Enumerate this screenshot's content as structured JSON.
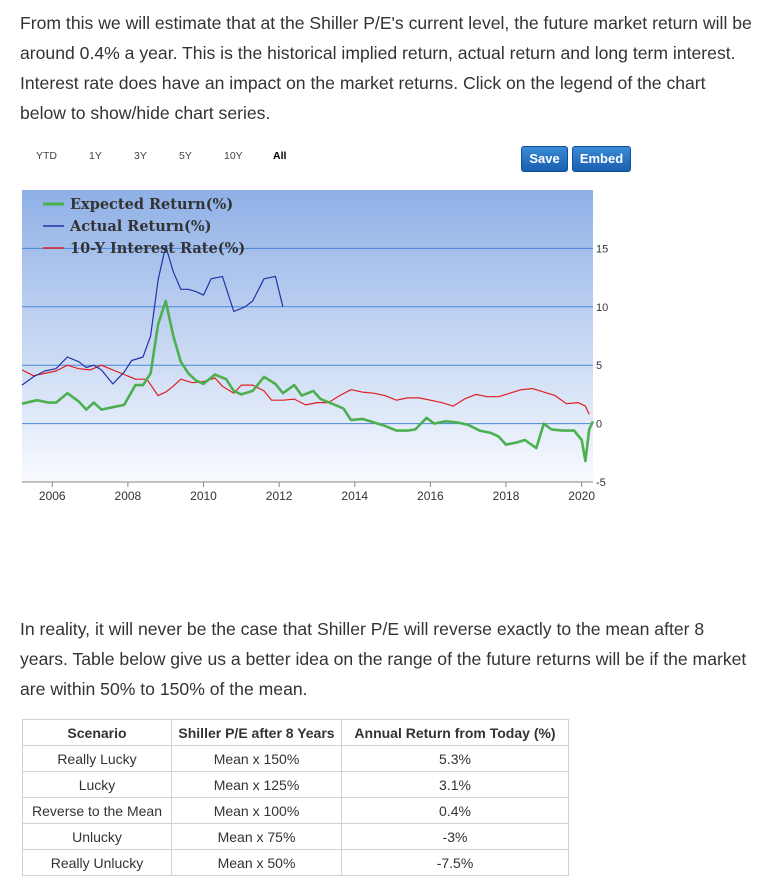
{
  "intro_text": "From this we will estimate that at the Shiller P/E's current level, the future market return will be around 0.4% a year. This is the historical implied return, actual return and long term interest. Interest rate does have an impact on the market returns. Click on the legend of the chart below to show/hide chart series.",
  "range_buttons": [
    "YTD",
    "1Y",
    "3Y",
    "5Y",
    "10Y",
    "All"
  ],
  "active_range": "All",
  "save_label": "Save",
  "embed_label": "Embed",
  "chart_data": {
    "type": "line",
    "x_ticks": [
      2006,
      2008,
      2010,
      2012,
      2014,
      2016,
      2018,
      2020
    ],
    "xlim": [
      2005.2,
      2020.3
    ],
    "y_ticks": [
      -5,
      0,
      5,
      10,
      15
    ],
    "ylim": [
      -5,
      20
    ],
    "grid": true,
    "legend_position": "top-left",
    "series": [
      {
        "name": "Expected Return(%)",
        "color": "#4cb050",
        "points": [
          [
            2005.2,
            1.7
          ],
          [
            2005.6,
            2.0
          ],
          [
            2005.9,
            1.8
          ],
          [
            2006.1,
            1.8
          ],
          [
            2006.4,
            2.6
          ],
          [
            2006.7,
            1.9
          ],
          [
            2006.9,
            1.2
          ],
          [
            2007.1,
            1.8
          ],
          [
            2007.3,
            1.2
          ],
          [
            2007.6,
            1.4
          ],
          [
            2007.9,
            1.6
          ],
          [
            2008.2,
            3.3
          ],
          [
            2008.4,
            3.3
          ],
          [
            2008.6,
            4.3
          ],
          [
            2008.8,
            8.5
          ],
          [
            2009.0,
            10.5
          ],
          [
            2009.2,
            7.5
          ],
          [
            2009.4,
            5.3
          ],
          [
            2009.6,
            4.3
          ],
          [
            2009.8,
            3.7
          ],
          [
            2010.0,
            3.4
          ],
          [
            2010.3,
            4.2
          ],
          [
            2010.6,
            3.8
          ],
          [
            2010.8,
            2.8
          ],
          [
            2011.0,
            2.5
          ],
          [
            2011.3,
            2.8
          ],
          [
            2011.6,
            4.0
          ],
          [
            2011.9,
            3.4
          ],
          [
            2012.1,
            2.6
          ],
          [
            2012.4,
            3.3
          ],
          [
            2012.6,
            2.4
          ],
          [
            2012.9,
            2.8
          ],
          [
            2013.1,
            2.1
          ],
          [
            2013.4,
            1.7
          ],
          [
            2013.7,
            1.3
          ],
          [
            2013.9,
            0.3
          ],
          [
            2014.2,
            0.4
          ],
          [
            2014.5,
            0.1
          ],
          [
            2014.8,
            -0.2
          ],
          [
            2015.1,
            -0.6
          ],
          [
            2015.4,
            -0.6
          ],
          [
            2015.6,
            -0.5
          ],
          [
            2015.9,
            0.5
          ],
          [
            2016.1,
            0.0
          ],
          [
            2016.4,
            0.2
          ],
          [
            2016.7,
            0.1
          ],
          [
            2017.0,
            -0.1
          ],
          [
            2017.3,
            -0.6
          ],
          [
            2017.6,
            -0.8
          ],
          [
            2017.8,
            -1.1
          ],
          [
            2018.0,
            -1.8
          ],
          [
            2018.3,
            -1.6
          ],
          [
            2018.5,
            -1.4
          ],
          [
            2018.8,
            -2.1
          ],
          [
            2019.0,
            0.0
          ],
          [
            2019.2,
            -0.5
          ],
          [
            2019.5,
            -0.6
          ],
          [
            2019.8,
            -0.6
          ],
          [
            2020.0,
            -1.4
          ],
          [
            2020.1,
            -3.2
          ],
          [
            2020.2,
            -0.5
          ],
          [
            2020.3,
            0.2
          ]
        ]
      },
      {
        "name": "Actual Return(%)",
        "color": "#2233a8",
        "points": [
          [
            2005.2,
            3.3
          ],
          [
            2005.5,
            4.0
          ],
          [
            2005.8,
            4.5
          ],
          [
            2006.1,
            4.7
          ],
          [
            2006.4,
            5.7
          ],
          [
            2006.7,
            5.3
          ],
          [
            2006.9,
            4.8
          ],
          [
            2007.1,
            5.0
          ],
          [
            2007.3,
            4.6
          ],
          [
            2007.6,
            3.4
          ],
          [
            2007.9,
            4.4
          ],
          [
            2008.1,
            5.4
          ],
          [
            2008.4,
            5.7
          ],
          [
            2008.6,
            7.5
          ],
          [
            2008.8,
            12.3
          ],
          [
            2009.0,
            15.2
          ],
          [
            2009.2,
            13.0
          ],
          [
            2009.4,
            11.5
          ],
          [
            2009.6,
            11.5
          ],
          [
            2009.8,
            11.3
          ],
          [
            2010.0,
            11.0
          ],
          [
            2010.2,
            12.4
          ],
          [
            2010.5,
            12.6
          ],
          [
            2010.8,
            9.6
          ],
          [
            2011.1,
            10.0
          ],
          [
            2011.3,
            10.5
          ],
          [
            2011.6,
            12.4
          ],
          [
            2011.9,
            12.6
          ],
          [
            2012.1,
            10.0
          ]
        ]
      },
      {
        "name": "10-Y Interest Rate(%)",
        "color": "#e02020",
        "points": [
          [
            2005.2,
            4.6
          ],
          [
            2005.5,
            4.1
          ],
          [
            2005.8,
            4.3
          ],
          [
            2006.1,
            4.5
          ],
          [
            2006.4,
            5.0
          ],
          [
            2006.7,
            4.7
          ],
          [
            2007.0,
            4.6
          ],
          [
            2007.3,
            5.0
          ],
          [
            2007.6,
            4.6
          ],
          [
            2007.9,
            4.2
          ],
          [
            2008.2,
            3.8
          ],
          [
            2008.5,
            3.8
          ],
          [
            2008.8,
            2.4
          ],
          [
            2009.0,
            2.7
          ],
          [
            2009.2,
            3.2
          ],
          [
            2009.4,
            3.8
          ],
          [
            2009.7,
            3.5
          ],
          [
            2010.0,
            3.6
          ],
          [
            2010.3,
            3.9
          ],
          [
            2010.5,
            3.2
          ],
          [
            2010.8,
            2.6
          ],
          [
            2011.0,
            3.3
          ],
          [
            2011.3,
            3.3
          ],
          [
            2011.6,
            2.8
          ],
          [
            2011.8,
            2.0
          ],
          [
            2012.1,
            2.0
          ],
          [
            2012.4,
            2.1
          ],
          [
            2012.7,
            1.6
          ],
          [
            2013.0,
            1.8
          ],
          [
            2013.3,
            1.8
          ],
          [
            2013.6,
            2.4
          ],
          [
            2013.9,
            2.9
          ],
          [
            2014.2,
            2.7
          ],
          [
            2014.5,
            2.6
          ],
          [
            2014.8,
            2.4
          ],
          [
            2015.1,
            2.0
          ],
          [
            2015.4,
            2.2
          ],
          [
            2015.7,
            2.2
          ],
          [
            2016.0,
            2.0
          ],
          [
            2016.3,
            1.8
          ],
          [
            2016.6,
            1.5
          ],
          [
            2016.9,
            2.1
          ],
          [
            2017.2,
            2.5
          ],
          [
            2017.5,
            2.3
          ],
          [
            2017.8,
            2.3
          ],
          [
            2018.1,
            2.6
          ],
          [
            2018.4,
            2.9
          ],
          [
            2018.7,
            3.0
          ],
          [
            2019.0,
            2.7
          ],
          [
            2019.3,
            2.4
          ],
          [
            2019.6,
            1.7
          ],
          [
            2019.9,
            1.8
          ],
          [
            2020.1,
            1.5
          ],
          [
            2020.2,
            0.8
          ]
        ]
      }
    ]
  },
  "outro_text": "In reality, it will never be the case that Shiller P/E will reverse exactly to the mean after 8 years. Table below give us a better idea on the range of the future returns will be if the market are within 50% to 150% of the mean.",
  "table": {
    "headers": [
      "Scenario",
      "Shiller P/E after 8 Years",
      "Annual Return from Today (%)"
    ],
    "rows": [
      [
        "Really Lucky",
        "Mean x 150%",
        "5.3%"
      ],
      [
        "Lucky",
        "Mean x 125%",
        "3.1%"
      ],
      [
        "Reverse to the Mean",
        "Mean x 100%",
        "0.4%"
      ],
      [
        "Unlucky",
        "Mean x 75%",
        "-3%"
      ],
      [
        "Really Unlucky",
        "Mean x 50%",
        "-7.5%"
      ]
    ]
  }
}
